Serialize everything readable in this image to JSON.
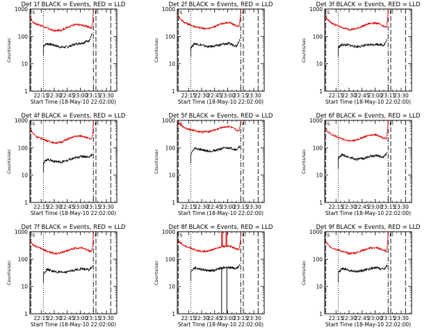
{
  "figure": {
    "xaxis_title": "Start Time (18-May-10 22:02:00)",
    "ytitle": "Counts/sec",
    "legend_events": "BLACK = Events",
    "legend_lld": "RED = LLD",
    "colors": {
      "events": "#000000",
      "lld": "#dd0000",
      "axes": "#000000",
      "background": "#ffffff"
    }
  },
  "chart_data": [
    {
      "type": "line",
      "title": "Det 1f BLACK = Events, RED = LLD",
      "detector": "1f",
      "ylabel": "Counts/sec",
      "xlabel": "Start Time (18-May-10 22:02:00)",
      "yscale": "log",
      "ylim": [
        1,
        1000
      ],
      "yticks": [
        "1",
        "10",
        "100",
        "1000"
      ],
      "xlim_min": [
        0,
        100
      ],
      "xticks": [
        "22:15",
        "22:30",
        "22:45",
        "23:00",
        "23:15",
        "23:30"
      ],
      "xtick_min": [
        13,
        28,
        43,
        58,
        73,
        88
      ],
      "markers": {
        "SAA_entry_min": 1,
        "SAA_exit_min": 76,
        "data_start_min": 15.5,
        "data_end_min": 72,
        "saa2_min": 73,
        "saa3_min": 93
      },
      "flags": [
        "Fl"
      ],
      "events": {
        "x_min": [
          15.5,
          20,
          28,
          36,
          44,
          52,
          60,
          68,
          72
        ],
        "counts": [
          45,
          55,
          48,
          40,
          42,
          52,
          58,
          70,
          130
        ]
      },
      "lld": {
        "x_min": [
          0.5,
          3,
          8,
          13,
          20,
          28,
          36,
          44,
          52,
          60,
          66,
          71,
          72.5,
          73
        ],
        "counts": [
          500,
          340,
          280,
          250,
          200,
          160,
          170,
          220,
          270,
          260,
          230,
          200,
          400,
          1000
        ]
      }
    },
    {
      "type": "line",
      "title": "Det 2f BLACK = Events, RED = LLD",
      "detector": "2f",
      "ylabel": "Counts/sec",
      "xlabel": "Start Time (18-May-10 22:02:00)",
      "yscale": "log",
      "ylim": [
        1,
        1000
      ],
      "yticks": [
        "1",
        "10",
        "100",
        "1000"
      ],
      "xlim_min": [
        0,
        100
      ],
      "xticks": [
        "22:15",
        "22:30",
        "22:45",
        "23:00",
        "23:15",
        "23:30"
      ],
      "xtick_min": [
        13,
        28,
        43,
        58,
        73,
        88
      ],
      "markers": {
        "SAA_entry_min": 1,
        "SAA_exit_min": 76,
        "data_start_min": 15.5,
        "data_end_min": 72,
        "saa2_min": 73,
        "saa3_min": 93
      },
      "flags": [
        "Fl"
      ],
      "events": {
        "x_min": [
          15.5,
          20,
          28,
          36,
          44,
          52,
          60,
          68,
          72
        ],
        "counts": [
          40,
          55,
          48,
          42,
          45,
          52,
          55,
          45,
          80
        ]
      },
      "lld": {
        "x_min": [
          0.5,
          3,
          8,
          13,
          20,
          28,
          36,
          44,
          52,
          60,
          66,
          71,
          72.5,
          73
        ],
        "counts": [
          700,
          450,
          330,
          280,
          230,
          200,
          190,
          240,
          300,
          320,
          260,
          220,
          500,
          1000
        ]
      }
    },
    {
      "type": "line",
      "title": "Det 3f BLACK = Events, RED = LLD",
      "detector": "3f",
      "ylabel": "Counts/sec",
      "xlabel": "Start Time (18-May-10 22:02:00)",
      "yscale": "log",
      "ylim": [
        1,
        1000
      ],
      "yticks": [
        "1",
        "10",
        "100",
        "1000"
      ],
      "xlim_min": [
        0,
        100
      ],
      "xticks": [
        "22:15",
        "22:30",
        "22:45",
        "23:00",
        "23:15",
        "23:30"
      ],
      "xtick_min": [
        13,
        28,
        43,
        58,
        73,
        88
      ],
      "markers": {
        "SAA_entry_min": 1,
        "SAA_exit_min": 76,
        "data_start_min": 15.5,
        "data_end_min": 72,
        "saa2_min": 73,
        "saa3_min": 93
      },
      "flags": [
        "Fl"
      ],
      "events": {
        "x_min": [
          15.5,
          20,
          28,
          36,
          44,
          52,
          60,
          68,
          72
        ],
        "counts": [
          40,
          50,
          48,
          42,
          45,
          50,
          52,
          48,
          75
        ]
      },
      "lld": {
        "x_min": [
          0.5,
          3,
          8,
          13,
          20,
          28,
          36,
          44,
          52,
          60,
          66,
          71,
          72.5,
          73
        ],
        "counts": [
          650,
          420,
          310,
          260,
          210,
          180,
          190,
          240,
          300,
          310,
          250,
          210,
          480,
          1000
        ]
      }
    },
    {
      "type": "line",
      "title": "Det 4f BLACK = Events, RED = LLD",
      "detector": "4f",
      "ylabel": "Counts/sec",
      "xlabel": "Start Time (18-May-10 22:02:00)",
      "yscale": "log",
      "ylim": [
        1,
        1000
      ],
      "yticks": [
        "1",
        "10",
        "100",
        "1000"
      ],
      "xlim_min": [
        0,
        100
      ],
      "xticks": [
        "22:15",
        "22:30",
        "22:45",
        "23:00",
        "23:15",
        "23:30"
      ],
      "xtick_min": [
        13,
        28,
        43,
        58,
        73,
        88
      ],
      "markers": {
        "SAA_entry_min": 1,
        "SAA_exit_min": 76,
        "data_start_min": 15.5,
        "data_end_min": 72,
        "saa2_min": 73,
        "saa3_min": 93
      },
      "flags": [
        "Fl"
      ],
      "events": {
        "x_min": [
          15.5,
          20,
          28,
          36,
          44,
          52,
          60,
          68,
          72
        ],
        "counts": [
          28,
          38,
          32,
          30,
          35,
          42,
          50,
          45,
          60
        ]
      },
      "lld": {
        "x_min": [
          0.5,
          3,
          8,
          13,
          20,
          28,
          36,
          44,
          52,
          60,
          66,
          71,
          72.5,
          73
        ],
        "counts": [
          500,
          350,
          250,
          220,
          180,
          150,
          160,
          210,
          260,
          270,
          230,
          200,
          400,
          1000
        ]
      }
    },
    {
      "type": "line",
      "title": "Det 5f BLACK = Events, RED = LLD",
      "detector": "5f",
      "ylabel": "Counts/sec",
      "xlabel": "Start Time (18-May-10 22:02:00)",
      "yscale": "log",
      "ylim": [
        1,
        1000
      ],
      "yticks": [
        "1",
        "10",
        "100",
        "1000"
      ],
      "xlim_min": [
        0,
        100
      ],
      "xticks": [
        "22:15",
        "22:30",
        "22:45",
        "23:00",
        "23:15",
        "23:30"
      ],
      "xtick_min": [
        13,
        28,
        43,
        58,
        73,
        88
      ],
      "markers": {
        "SAA_entry_min": 1,
        "SAA_exit_min": 76,
        "data_start_min": 15.5,
        "data_end_min": 72,
        "saa2_min": 73,
        "saa3_min": 93
      },
      "flags": [
        "Fl"
      ],
      "events": {
        "x_min": [
          15.5,
          20,
          28,
          36,
          44,
          52,
          60,
          68,
          72
        ],
        "counts": [
          60,
          95,
          85,
          75,
          80,
          95,
          100,
          85,
          110
        ]
      },
      "lld": {
        "x_min": [
          0.5,
          3,
          8,
          13,
          20,
          28,
          36,
          44,
          52,
          60,
          66,
          71,
          72.5,
          73
        ],
        "counts": [
          900,
          700,
          550,
          480,
          420,
          380,
          390,
          450,
          560,
          600,
          480,
          400,
          700,
          1000
        ]
      }
    },
    {
      "type": "line",
      "title": "Det 6f BLACK = Events, RED = LLD",
      "detector": "6f",
      "ylabel": "Counts/sec",
      "xlabel": "Start Time (18-May-10 22:02:00)",
      "yscale": "log",
      "ylim": [
        1,
        1000
      ],
      "yticks": [
        "1",
        "10",
        "100",
        "1000"
      ],
      "xlim_min": [
        0,
        100
      ],
      "xticks": [
        "22:15",
        "22:30",
        "22:45",
        "23:00",
        "23:15",
        "23:30"
      ],
      "xtick_min": [
        13,
        28,
        43,
        58,
        73,
        88
      ],
      "markers": {
        "SAA_entry_min": 1,
        "SAA_exit_min": 76,
        "data_start_min": 15.5,
        "data_end_min": 72,
        "saa2_min": 73,
        "saa3_min": 93
      },
      "flags": [
        "Fl"
      ],
      "events": {
        "x_min": [
          15.5,
          20,
          28,
          36,
          44,
          52,
          60,
          68,
          72
        ],
        "counts": [
          40,
          55,
          45,
          38,
          40,
          48,
          52,
          45,
          70
        ]
      },
      "lld": {
        "x_min": [
          0.5,
          3,
          8,
          13,
          20,
          28,
          36,
          44,
          52,
          60,
          66,
          71,
          72.5,
          73
        ],
        "counts": [
          600,
          400,
          300,
          260,
          210,
          180,
          190,
          240,
          290,
          300,
          240,
          210,
          450,
          1000
        ]
      }
    },
    {
      "type": "line",
      "title": "Det 7f BLACK = Events, RED = LLD",
      "detector": "7f",
      "ylabel": "Counts/sec",
      "xlabel": "Start Time (18-May-10 22:02:00)",
      "yscale": "log",
      "ylim": [
        1,
        1000
      ],
      "yticks": [
        "1",
        "10",
        "100",
        "1000"
      ],
      "xlim_min": [
        0,
        100
      ],
      "xticks": [
        "22:15",
        "22:30",
        "22:45",
        "23:00",
        "23:15",
        "23:30"
      ],
      "xtick_min": [
        13,
        28,
        43,
        58,
        73,
        88
      ],
      "markers": {
        "SAA_entry_min": 1,
        "SAA_exit_min": 76,
        "data_start_min": 15.5,
        "data_end_min": 72,
        "saa2_min": 73,
        "saa3_min": 93
      },
      "flags": [
        "Fl"
      ],
      "events": {
        "x_min": [
          15.5,
          20,
          28,
          36,
          44,
          52,
          60,
          68,
          72
        ],
        "counts": [
          30,
          42,
          35,
          32,
          35,
          40,
          45,
          40,
          55
        ]
      },
      "lld": {
        "x_min": [
          0.5,
          3,
          8,
          13,
          20,
          28,
          36,
          44,
          52,
          60,
          66,
          71,
          72.5,
          73
        ],
        "counts": [
          450,
          330,
          280,
          240,
          190,
          160,
          170,
          210,
          250,
          260,
          220,
          190,
          380,
          1000
        ]
      }
    },
    {
      "type": "line",
      "title": "Det 8f BLACK = Events, RED = LLD",
      "detector": "8f",
      "ylabel": "Counts/sec",
      "xlabel": "Start Time (18-May-10 22:02:00)",
      "yscale": "log",
      "ylim": [
        1,
        1000
      ],
      "yticks": [
        "1",
        "10",
        "100",
        "1000"
      ],
      "xlim_min": [
        0,
        100
      ],
      "xticks": [
        "22:15",
        "22:30",
        "22:45",
        "23:00",
        "23:15",
        "23:30"
      ],
      "xtick_min": [
        13,
        28,
        43,
        58,
        73,
        88
      ],
      "markers": {
        "SAA_entry_min": 1,
        "SAA_exit_min": 76,
        "data_start_min": 15.5,
        "data_end_min": 72,
        "saa2_min": 73,
        "saa3_min": 93
      },
      "flags": [
        "Fl"
      ],
      "events": {
        "x_min": [
          15.5,
          20,
          28,
          36,
          44,
          52,
          60,
          68,
          72
        ],
        "counts": [
          35,
          48,
          42,
          38,
          40,
          48,
          50,
          45,
          60
        ]
      },
      "lld": {
        "x_min": [
          0.5,
          3,
          8,
          13,
          20,
          28,
          36,
          44,
          52,
          60,
          66,
          71,
          72.5,
          73
        ],
        "counts": [
          500,
          400,
          320,
          270,
          220,
          190,
          200,
          240,
          290,
          300,
          250,
          220,
          420,
          1000
        ]
      },
      "spikes": [
        {
          "series": "lld",
          "x_min": [
            51,
            52
          ],
          "to": 1000
        },
        {
          "series": "lld",
          "x_min": [
            56,
            57
          ],
          "to": 1000
        },
        {
          "series": "events",
          "x_min": [
            51
          ],
          "to": 1
        },
        {
          "series": "events",
          "x_min": [
            57
          ],
          "to": 1
        }
      ]
    },
    {
      "type": "line",
      "title": "Det 9f BLACK = Events, RED = LLD",
      "detector": "9f",
      "ylabel": "Counts/sec",
      "xlabel": "Start Time (18-May-10 22:02:00)",
      "yscale": "log",
      "ylim": [
        1,
        1000
      ],
      "yticks": [
        "1",
        "10",
        "100",
        "1000"
      ],
      "xlim_min": [
        0,
        100
      ],
      "xticks": [
        "22:15",
        "22:30",
        "22:45",
        "23:00",
        "23:15",
        "23:30"
      ],
      "xtick_min": [
        13,
        28,
        43,
        58,
        73,
        88
      ],
      "markers": {
        "SAA_entry_min": 1,
        "SAA_exit_min": 76,
        "data_start_min": 15.5,
        "data_end_min": 72,
        "saa2_min": 73,
        "saa3_min": 93
      },
      "flags": [
        "Fl"
      ],
      "events": {
        "x_min": [
          15.5,
          20,
          28,
          36,
          44,
          52,
          60,
          68,
          72
        ],
        "counts": [
          32,
          45,
          38,
          35,
          38,
          44,
          48,
          42,
          60
        ]
      },
      "lld": {
        "x_min": [
          0.5,
          3,
          8,
          13,
          20,
          28,
          36,
          44,
          52,
          60,
          66,
          71,
          72.5,
          73
        ],
        "counts": [
          500,
          350,
          260,
          230,
          190,
          160,
          170,
          210,
          250,
          260,
          220,
          190,
          400,
          1000
        ]
      }
    }
  ]
}
